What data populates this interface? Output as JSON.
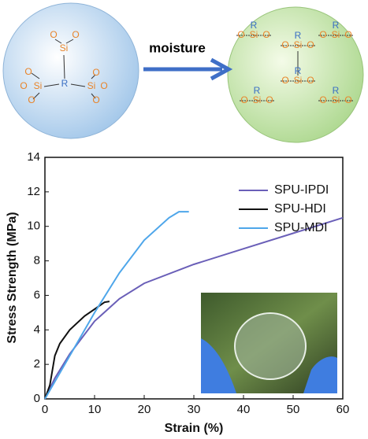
{
  "schematic": {
    "arrow_label": "moisture",
    "left_labels": [
      "O",
      "O",
      "Si",
      "O",
      "O",
      "Si",
      "O",
      "O",
      "O",
      "Si",
      "O",
      "R"
    ],
    "right_labels": [
      "Si",
      "O",
      "O",
      "R",
      "Si",
      "O",
      "O",
      "R",
      "Si",
      "O",
      "O",
      "R",
      "Si",
      "O",
      "O",
      "R",
      "Si",
      "O",
      "O",
      "R",
      "Si",
      "O",
      "O",
      "R"
    ]
  },
  "chart_data": {
    "type": "line",
    "xlabel": "Strain (%)",
    "ylabel": "Stress Strength (MPa)",
    "xlim": [
      0,
      60
    ],
    "xticks": [
      0,
      10,
      20,
      30,
      40,
      50,
      60
    ],
    "ylim": [
      0,
      14
    ],
    "yticks": [
      0,
      2,
      4,
      6,
      8,
      10,
      12,
      14
    ],
    "legend": "upper right",
    "series": [
      {
        "name": "SPU-IPDI",
        "color": "#6a5fb8",
        "x": [
          0,
          2,
          5,
          10,
          15,
          20,
          30,
          40,
          50,
          60
        ],
        "values": [
          0,
          1.2,
          2.6,
          4.5,
          5.8,
          6.7,
          7.8,
          8.7,
          9.6,
          10.5
        ]
      },
      {
        "name": "SPU-HDI",
        "color": "#111111",
        "x": [
          0,
          1,
          2,
          3,
          5,
          8,
          10,
          12,
          13
        ],
        "values": [
          0,
          0.8,
          2.5,
          3.2,
          4.0,
          4.8,
          5.2,
          5.6,
          5.65
        ]
      },
      {
        "name": "SPU-MDI",
        "color": "#4ea6ea",
        "x": [
          0,
          2,
          5,
          10,
          15,
          20,
          25,
          27,
          29
        ],
        "values": [
          0,
          1.0,
          2.5,
          5.0,
          7.3,
          9.2,
          10.5,
          10.85,
          10.85
        ]
      }
    ]
  }
}
